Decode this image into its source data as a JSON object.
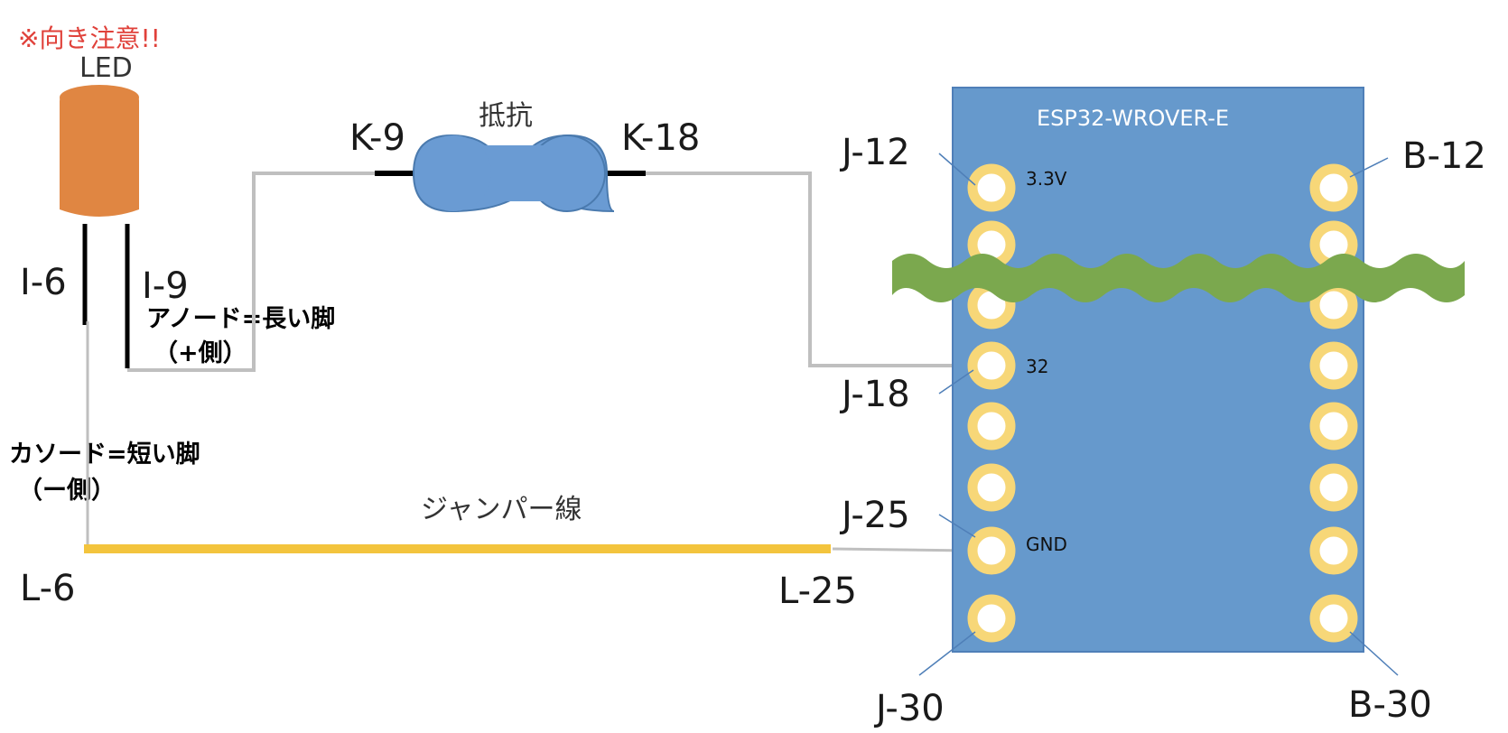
{
  "warning": "※向き注意!!",
  "led": {
    "label": "LED",
    "color": "#E08642",
    "pin_cathode": "I-6",
    "pin_anode": "I-9",
    "anode_note_line1": "アノード=長い脚",
    "anode_note_line2": "（+側）",
    "cathode_note_line1": "カソード=短い脚",
    "cathode_note_line2": "（ー側）"
  },
  "resistor": {
    "label": "抵抗",
    "color": "#6A9BD3",
    "pin_left": "K-9",
    "pin_right": "K-18"
  },
  "jumper": {
    "label": "ジャンパー線",
    "color": "#F3C43D",
    "pin_left": "L-6",
    "pin_right": "L-25"
  },
  "board": {
    "title": "ESP32-WROVER-E",
    "color": "#6699CC",
    "pad_color": "#F7D778",
    "pin_3v3": "3.3V",
    "pin_32": "32",
    "pin_gnd": "GND",
    "labels": {
      "j12": "J-12",
      "j18": "J-18",
      "j25": "J-25",
      "j30": "J-30",
      "b12": "B-12",
      "b30": "B-30"
    }
  },
  "break_color": "#7BA84E",
  "wire_color": "#BFBFBF"
}
